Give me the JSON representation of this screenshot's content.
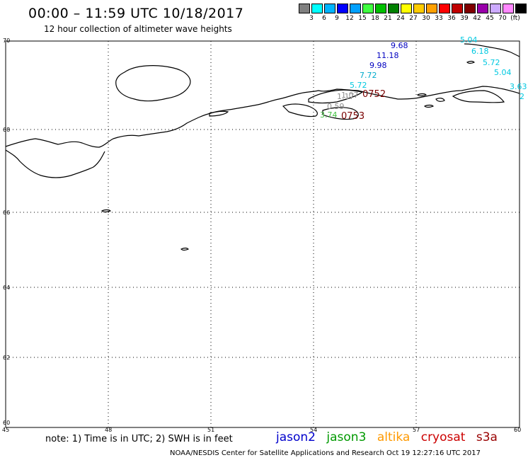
{
  "header": {
    "title": "00:00 – 11:59 UTC 10/18/2017",
    "subtitle": "12 hour collection of altimeter wave heights"
  },
  "legend": {
    "colors": [
      "#808080",
      "#00ffff",
      "#00b4ff",
      "#0000ff",
      "#00a0ff",
      "#40ff40",
      "#00c000",
      "#008000",
      "#ffff00",
      "#ffcc00",
      "#ffa000",
      "#ff0000",
      "#c00000",
      "#800000",
      "#9900aa",
      "#ccaaff",
      "#ff88ff",
      "#000000"
    ],
    "labels": [
      "3",
      "6",
      "9",
      "12",
      "15",
      "18",
      "21",
      "24",
      "27",
      "30",
      "33",
      "36",
      "39",
      "42",
      "45",
      "70",
      "(ft)"
    ]
  },
  "map": {
    "lat_labels": [
      "70",
      "68",
      "66",
      "64",
      "62",
      "60"
    ],
    "lon_labels": [
      "45",
      "48",
      "51",
      "54",
      "57",
      "60"
    ],
    "observations": [
      {
        "value": "9.68",
        "color": "#0000c0"
      },
      {
        "value": "11.18",
        "color": "#0000c0"
      },
      {
        "value": "9.98",
        "color": "#0000c0"
      },
      {
        "value": "7.72",
        "color": "#00aacc"
      },
      {
        "value": "5.72",
        "color": "#00c8e0"
      },
      {
        "value": "1.07",
        "color": "#909090"
      },
      {
        "value": "1.17",
        "color": "#909090"
      },
      {
        "value": "0.59",
        "color": "#909090"
      },
      {
        "value": "3.74",
        "color": "#40c040"
      },
      {
        "value": "5.04",
        "color": "#00c8e0"
      },
      {
        "value": "6.18",
        "color": "#00c8e0"
      },
      {
        "value": "5.72",
        "color": "#00c8e0"
      },
      {
        "value": "5.04",
        "color": "#00c8e0"
      },
      {
        "value": "3.63",
        "color": "#00c8e0"
      },
      {
        "value": "2",
        "color": "#00c8e0"
      }
    ],
    "times": [
      "0752",
      "0753"
    ]
  },
  "footer": {
    "note": "note: 1) Time is in UTC; 2) SWH is in feet",
    "satellites": [
      {
        "name": "jason2",
        "color": "#0000cc"
      },
      {
        "name": "jason3",
        "color": "#009900"
      },
      {
        "name": "altika",
        "color": "#ff9900"
      },
      {
        "name": "cryosat",
        "color": "#cc0000"
      },
      {
        "name": "s3a",
        "color": "#990000"
      }
    ],
    "credit": "NOAA/NESDIS Center for Satellite Applications and Research    Oct 19 12:27:16 UTC 2017"
  }
}
